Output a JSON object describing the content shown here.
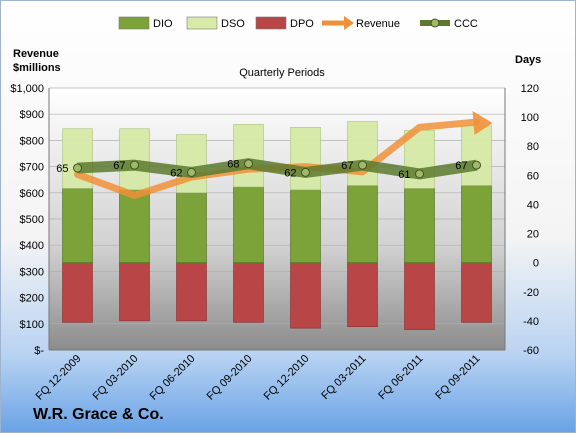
{
  "company": "W.R. Grace & Co.",
  "chart_data": {
    "type": "bar",
    "title": "Quarterly Periods",
    "left_axis_title": [
      "Revenue",
      "$millions"
    ],
    "right_axis_title": "Days",
    "left_ylim": [
      0,
      1000
    ],
    "left_ticks": [
      "$-",
      "$100",
      "$200",
      "$300",
      "$400",
      "$500",
      "$600",
      "$700",
      "$800",
      "$900",
      "$1,000"
    ],
    "right_ylim": [
      -60,
      120
    ],
    "right_ticks": [
      "-60",
      "-40",
      "-20",
      "0",
      "20",
      "40",
      "60",
      "80",
      "100",
      "120"
    ],
    "legend_position": "top",
    "categories": [
      "FQ 12-2009",
      "FQ 03-2010",
      "FQ 06-2010",
      "FQ 09-2010",
      "FQ 12-2010",
      "FQ 03-2011",
      "FQ 06-2011",
      "FQ 09-2011"
    ],
    "series": [
      {
        "name": "DIO",
        "color": "#7ba33a",
        "axis": "right",
        "stacking": "stacked from 0",
        "values": [
          51,
          50,
          48,
          52,
          50,
          53,
          51,
          53
        ]
      },
      {
        "name": "DSO",
        "color": "#d7eaa7",
        "axis": "right",
        "stacking": "stacked on DIO",
        "values": [
          41,
          42,
          40,
          43,
          43,
          44,
          40,
          41
        ]
      },
      {
        "name": "DPO",
        "color": "#b94646",
        "axis": "right",
        "stacking": "negative days below 0",
        "values": [
          -41,
          -40,
          -40,
          -41,
          -45,
          -44,
          -46,
          -41
        ]
      },
      {
        "name": "Revenue",
        "color": "#f0913a",
        "axis": "left",
        "type": "line",
        "values": [
          670,
          590,
          660,
          690,
          700,
          680,
          850,
          870
        ]
      },
      {
        "name": "CCC",
        "color": "#5c7a2f",
        "axis": "right",
        "type": "line",
        "values": [
          65,
          67,
          62,
          68,
          62,
          67,
          61,
          67
        ]
      }
    ]
  }
}
